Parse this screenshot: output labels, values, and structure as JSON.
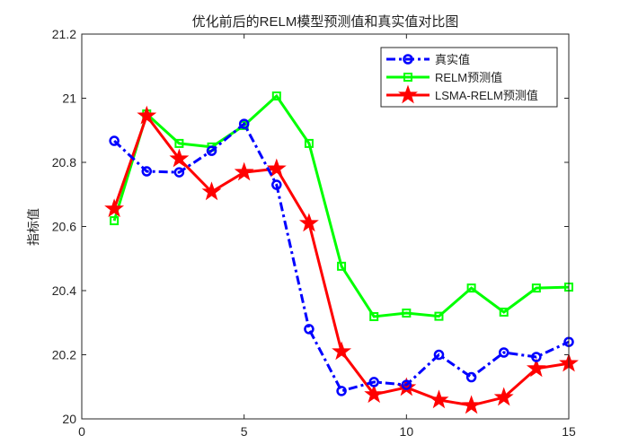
{
  "chart_data": {
    "type": "line",
    "title": "优化前后的RELM模型预测值和真实值对比图",
    "xlabel": "",
    "ylabel": "指标值",
    "xlim": [
      0,
      15
    ],
    "ylim": [
      20,
      21.2
    ],
    "xticks": [
      0,
      5,
      10,
      15
    ],
    "yticks": [
      20,
      20.2,
      20.4,
      20.6,
      20.8,
      21,
      21.2
    ],
    "grid": false,
    "legend_position": "top-right",
    "x": [
      1,
      2,
      3,
      4,
      5,
      6,
      7,
      8,
      9,
      10,
      11,
      12,
      13,
      14,
      15
    ],
    "series": [
      {
        "name": "真实值",
        "color": "#0000ff",
        "style": "dash-dot",
        "marker": "circle",
        "values": [
          20.867,
          20.772,
          20.769,
          20.836,
          20.92,
          20.73,
          20.28,
          20.087,
          20.115,
          20.106,
          20.2,
          20.13,
          20.207,
          20.193,
          20.24
        ]
      },
      {
        "name": "RELM预测值",
        "color": "#00ff00",
        "style": "solid",
        "marker": "square",
        "values": [
          20.618,
          20.951,
          20.859,
          20.848,
          20.915,
          21.007,
          20.859,
          20.476,
          20.319,
          20.33,
          20.32,
          20.408,
          20.333,
          20.408,
          20.411
        ]
      },
      {
        "name": "LSMA-RELM预测值",
        "color": "#ff0000",
        "style": "solid",
        "marker": "star",
        "values": [
          20.655,
          20.945,
          20.811,
          20.708,
          20.769,
          20.78,
          20.61,
          20.21,
          20.076,
          20.098,
          20.059,
          20.042,
          20.067,
          20.157,
          20.173
        ]
      }
    ]
  }
}
